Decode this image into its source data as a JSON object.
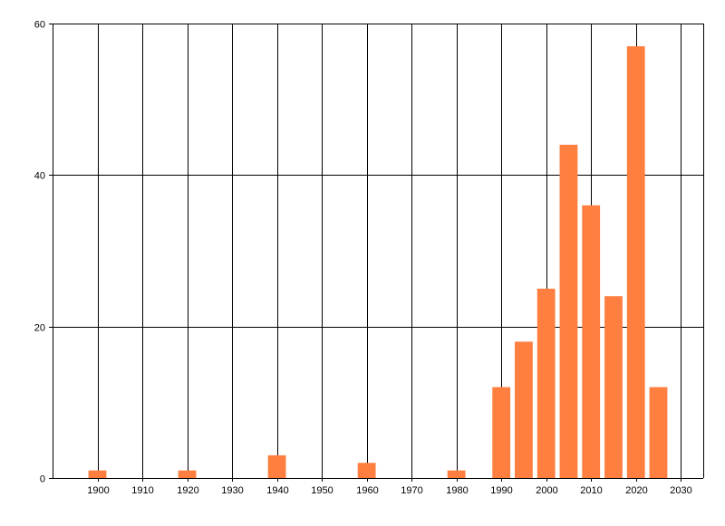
{
  "chart_data": {
    "type": "bar",
    "title": "",
    "xlabel": "",
    "ylabel": "",
    "x": [
      1900,
      1920,
      1940,
      1960,
      1980,
      1990,
      1995,
      2000,
      2005,
      2010,
      2015,
      2020,
      2025
    ],
    "values": [
      1,
      1,
      3,
      2,
      1,
      12,
      18,
      25,
      44,
      36,
      24,
      57,
      12
    ],
    "bar_width_years": 4,
    "xlim": [
      1890,
      2035
    ],
    "ylim": [
      0,
      60
    ],
    "x_ticks": [
      1900,
      1910,
      1920,
      1930,
      1940,
      1950,
      1960,
      1970,
      1980,
      1990,
      2000,
      2010,
      2020,
      2030
    ],
    "y_ticks": [
      0,
      20,
      40,
      60
    ],
    "grid": true,
    "bar_color": "#FF7F40",
    "grid_color": "#000000"
  }
}
